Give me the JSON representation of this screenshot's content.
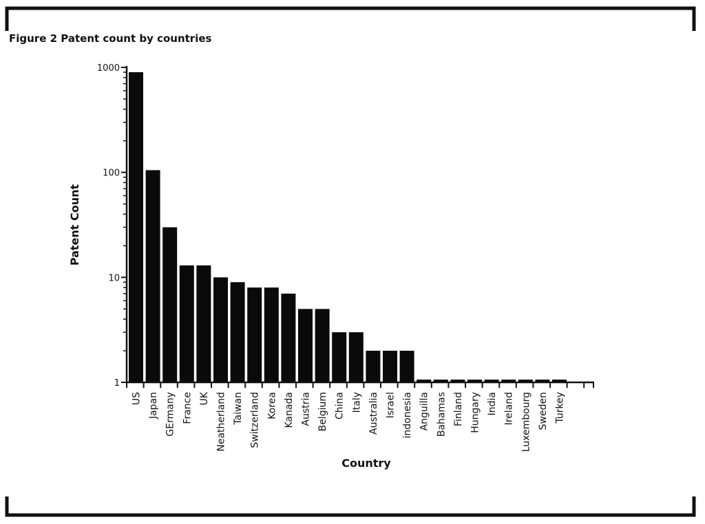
{
  "figure": {
    "title": "Figure 2  Patent count by countries"
  },
  "chart_data": {
    "type": "bar",
    "title": "Figure 2  Patent count by countries",
    "xlabel": "Country",
    "ylabel": "Patent Count",
    "yscale": "log",
    "ylim": [
      1,
      1000
    ],
    "yticks": [
      {
        "value": 1,
        "label": "1"
      },
      {
        "value": 10,
        "label": "10"
      },
      {
        "value": 100,
        "label": "100"
      },
      {
        "value": 1000,
        "label": "1000"
      }
    ],
    "categories": [
      "US",
      "Japan",
      "GErmany",
      "France",
      "UK",
      "Neatherland",
      "Taiwan",
      "Switzerland",
      "Korea",
      "Kanada",
      "Austria",
      "Belgium",
      "China",
      "Italy",
      "Australia",
      "Israel",
      "indonesia",
      "Anguilla",
      "Bahamas",
      "Finland",
      "Hungary",
      "India",
      "Ireland",
      "Luxembourg",
      "Sweden",
      "Turkey"
    ],
    "values": [
      900,
      105,
      30,
      13,
      13,
      10,
      9,
      8,
      8,
      7,
      5,
      5,
      3,
      3,
      2,
      2,
      2,
      1,
      1,
      1,
      1,
      1,
      1,
      1,
      1,
      1
    ],
    "bar_color": "#0a0a0a",
    "grid": false,
    "legend": "none"
  }
}
